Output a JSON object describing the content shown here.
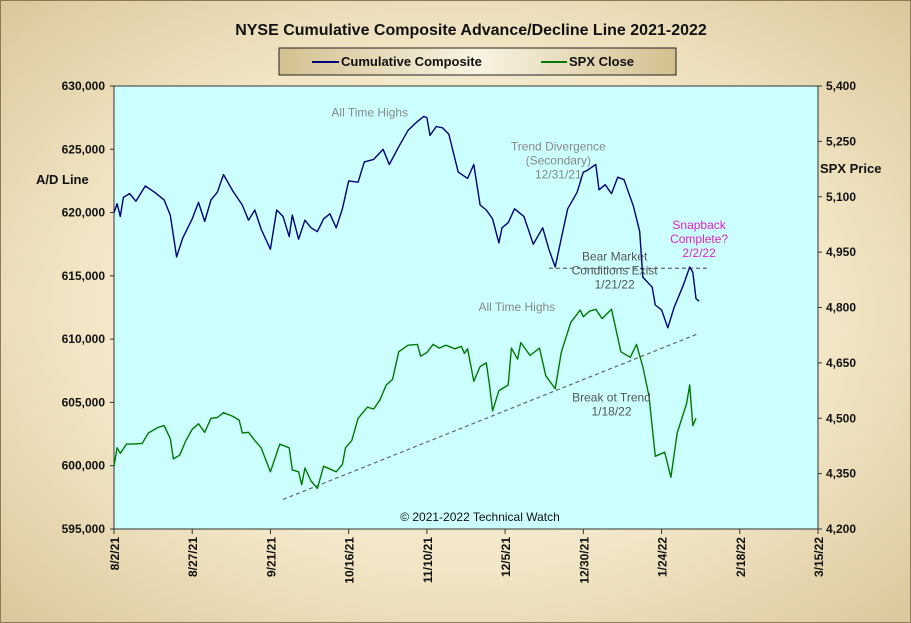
{
  "chart_data": {
    "type": "line",
    "title": "NYSE Cumulative  Composite Advance/Decline Line 2021-2022",
    "ylabel_left": "A/D Line",
    "ylabel_right": "SPX Price",
    "ylim_left": [
      595000,
      630000
    ],
    "ylim_right": [
      4200,
      5400
    ],
    "xlim": [
      "2021-08-02",
      "2022-03-15"
    ],
    "grid": false,
    "legend_position": "top-center",
    "x_tick_labels": [
      "8/2/21",
      "8/27/21",
      "9/21/21",
      "10/16/21",
      "11/10/21",
      "12/5/21",
      "12/30/21",
      "1/24/22",
      "2/18/22",
      "3/15/22"
    ],
    "y_tick_labels_left": [
      "630,000",
      "625,000",
      "620,000",
      "615,000",
      "610,000",
      "605,000",
      "600,000",
      "595,000"
    ],
    "y_tick_labels_right": [
      "5,400",
      "5,250",
      "5,100",
      "4,950",
      "4,800",
      "4,650",
      "4,500",
      "4,350",
      "4,200"
    ],
    "series": [
      {
        "name": "Cumulative Composite",
        "axis": "left",
        "color": "#00007a",
        "points": [
          [
            "2021-08-02",
            620000
          ],
          [
            "2021-08-03",
            620700
          ],
          [
            "2021-08-04",
            619700
          ],
          [
            "2021-08-05",
            621200
          ],
          [
            "2021-08-07",
            621500
          ],
          [
            "2021-08-09",
            620900
          ],
          [
            "2021-08-12",
            622100
          ],
          [
            "2021-08-15",
            621600
          ],
          [
            "2021-08-18",
            621000
          ],
          [
            "2021-08-20",
            619800
          ],
          [
            "2021-08-22",
            616500
          ],
          [
            "2021-08-24",
            618000
          ],
          [
            "2021-08-27",
            619500
          ],
          [
            "2021-08-29",
            620800
          ],
          [
            "2021-08-31",
            619300
          ],
          [
            "2021-09-02",
            621000
          ],
          [
            "2021-09-04",
            621600
          ],
          [
            "2021-09-06",
            623000
          ],
          [
            "2021-09-09",
            621700
          ],
          [
            "2021-09-12",
            620600
          ],
          [
            "2021-09-14",
            619400
          ],
          [
            "2021-09-16",
            620200
          ],
          [
            "2021-09-18",
            618700
          ],
          [
            "2021-09-21",
            617100
          ],
          [
            "2021-09-23",
            620200
          ],
          [
            "2021-09-25",
            619700
          ],
          [
            "2021-09-27",
            618100
          ],
          [
            "2021-09-28",
            619800
          ],
          [
            "2021-09-30",
            617900
          ],
          [
            "2021-10-02",
            619400
          ],
          [
            "2021-10-04",
            618800
          ],
          [
            "2021-10-06",
            618500
          ],
          [
            "2021-10-08",
            619500
          ],
          [
            "2021-10-10",
            619900
          ],
          [
            "2021-10-12",
            618800
          ],
          [
            "2021-10-14",
            620300
          ],
          [
            "2021-10-16",
            622500
          ],
          [
            "2021-10-19",
            622400
          ],
          [
            "2021-10-21",
            624000
          ],
          [
            "2021-10-24",
            624200
          ],
          [
            "2021-10-27",
            625000
          ],
          [
            "2021-10-29",
            623800
          ],
          [
            "2021-11-01",
            625200
          ],
          [
            "2021-11-04",
            626500
          ],
          [
            "2021-11-07",
            627200
          ],
          [
            "2021-11-09",
            627600
          ],
          [
            "2021-11-10",
            627500
          ],
          [
            "2021-11-11",
            626100
          ],
          [
            "2021-11-13",
            626800
          ],
          [
            "2021-11-15",
            626700
          ],
          [
            "2021-11-17",
            626200
          ],
          [
            "2021-11-20",
            623200
          ],
          [
            "2021-11-23",
            622700
          ],
          [
            "2021-11-25",
            623800
          ],
          [
            "2021-11-27",
            620600
          ],
          [
            "2021-11-29",
            620200
          ],
          [
            "2021-12-01",
            619500
          ],
          [
            "2021-12-03",
            617600
          ],
          [
            "2021-12-04",
            618800
          ],
          [
            "2021-12-06",
            619200
          ],
          [
            "2021-12-08",
            620300
          ],
          [
            "2021-12-11",
            619700
          ],
          [
            "2021-12-14",
            617500
          ],
          [
            "2021-12-17",
            618800
          ],
          [
            "2021-12-19",
            617100
          ],
          [
            "2021-12-21",
            615700
          ],
          [
            "2021-12-23",
            618000
          ],
          [
            "2021-12-25",
            620300
          ],
          [
            "2021-12-28",
            621600
          ],
          [
            "2021-12-30",
            623200
          ],
          [
            "2021-12-31",
            623300
          ],
          [
            "2022-01-03",
            623800
          ],
          [
            "2022-01-04",
            621800
          ],
          [
            "2022-01-06",
            622200
          ],
          [
            "2022-01-08",
            621500
          ],
          [
            "2022-01-10",
            622800
          ],
          [
            "2022-01-12",
            622600
          ],
          [
            "2022-01-15",
            620500
          ],
          [
            "2022-01-17",
            618500
          ],
          [
            "2022-01-18",
            614900
          ],
          [
            "2022-01-21",
            614100
          ],
          [
            "2022-01-22",
            612700
          ],
          [
            "2022-01-24",
            612300
          ],
          [
            "2022-01-26",
            610900
          ],
          [
            "2022-01-28",
            612500
          ],
          [
            "2022-01-31",
            614300
          ],
          [
            "2022-02-02",
            615700
          ],
          [
            "2022-02-03",
            615300
          ],
          [
            "2022-02-04",
            613200
          ],
          [
            "2022-02-05",
            613000
          ]
        ]
      },
      {
        "name": "SPX Close",
        "axis": "right",
        "color": "#007a00",
        "points": [
          [
            "2021-08-02",
            4370
          ],
          [
            "2021-08-03",
            4420
          ],
          [
            "2021-08-04",
            4405
          ],
          [
            "2021-08-06",
            4430
          ],
          [
            "2021-08-08",
            4430
          ],
          [
            "2021-08-11",
            4432
          ],
          [
            "2021-08-13",
            4460
          ],
          [
            "2021-08-16",
            4475
          ],
          [
            "2021-08-18",
            4480
          ],
          [
            "2021-08-20",
            4445
          ],
          [
            "2021-08-21",
            4390
          ],
          [
            "2021-08-23",
            4400
          ],
          [
            "2021-08-25",
            4440
          ],
          [
            "2021-08-27",
            4470
          ],
          [
            "2021-08-29",
            4485
          ],
          [
            "2021-08-31",
            4462
          ],
          [
            "2021-09-02",
            4500
          ],
          [
            "2021-09-04",
            4502
          ],
          [
            "2021-09-06",
            4515
          ],
          [
            "2021-09-09",
            4505
          ],
          [
            "2021-09-11",
            4495
          ],
          [
            "2021-09-12",
            4460
          ],
          [
            "2021-09-14",
            4462
          ],
          [
            "2021-09-16",
            4440
          ],
          [
            "2021-09-18",
            4420
          ],
          [
            "2021-09-21",
            4355
          ],
          [
            "2021-09-24",
            4430
          ],
          [
            "2021-09-27",
            4420
          ],
          [
            "2021-09-28",
            4360
          ],
          [
            "2021-09-30",
            4355
          ],
          [
            "2021-10-01",
            4320
          ],
          [
            "2021-10-02",
            4365
          ],
          [
            "2021-10-04",
            4330
          ],
          [
            "2021-10-06",
            4310
          ],
          [
            "2021-10-08",
            4370
          ],
          [
            "2021-10-12",
            4355
          ],
          [
            "2021-10-14",
            4375
          ],
          [
            "2021-10-15",
            4420
          ],
          [
            "2021-10-17",
            4440
          ],
          [
            "2021-10-19",
            4500
          ],
          [
            "2021-10-22",
            4530
          ],
          [
            "2021-10-24",
            4525
          ],
          [
            "2021-10-26",
            4550
          ],
          [
            "2021-10-28",
            4590
          ],
          [
            "2021-10-30",
            4605
          ],
          [
            "2021-11-01",
            4680
          ],
          [
            "2021-11-04",
            4698
          ],
          [
            "2021-11-07",
            4700
          ],
          [
            "2021-11-08",
            4668
          ],
          [
            "2021-11-10",
            4678
          ],
          [
            "2021-11-12",
            4700
          ],
          [
            "2021-11-14",
            4690
          ],
          [
            "2021-11-16",
            4698
          ],
          [
            "2021-11-19",
            4688
          ],
          [
            "2021-11-21",
            4695
          ],
          [
            "2021-11-22",
            4676
          ],
          [
            "2021-11-23",
            4688
          ],
          [
            "2021-11-25",
            4600
          ],
          [
            "2021-11-27",
            4640
          ],
          [
            "2021-11-29",
            4650
          ],
          [
            "2021-11-30",
            4590
          ],
          [
            "2021-12-01",
            4520
          ],
          [
            "2021-12-03",
            4575
          ],
          [
            "2021-12-06",
            4590
          ],
          [
            "2021-12-07",
            4690
          ],
          [
            "2021-12-09",
            4660
          ],
          [
            "2021-12-10",
            4705
          ],
          [
            "2021-12-13",
            4670
          ],
          [
            "2021-12-16",
            4690
          ],
          [
            "2021-12-18",
            4615
          ],
          [
            "2021-12-21",
            4580
          ],
          [
            "2021-12-23",
            4680
          ],
          [
            "2021-12-26",
            4760
          ],
          [
            "2021-12-29",
            4793
          ],
          [
            "2021-12-30",
            4775
          ],
          [
            "2022-01-01",
            4790
          ],
          [
            "2022-01-03",
            4795
          ],
          [
            "2022-01-05",
            4770
          ],
          [
            "2022-01-08",
            4795
          ],
          [
            "2022-01-11",
            4680
          ],
          [
            "2022-01-14",
            4665
          ],
          [
            "2022-01-16",
            4700
          ],
          [
            "2022-01-18",
            4640
          ],
          [
            "2022-01-20",
            4560
          ],
          [
            "2022-01-22",
            4397
          ],
          [
            "2022-01-25",
            4408
          ],
          [
            "2022-01-27",
            4340
          ],
          [
            "2022-01-29",
            4460
          ],
          [
            "2022-02-01",
            4540
          ],
          [
            "2022-02-02",
            4590
          ],
          [
            "2022-02-03",
            4480
          ],
          [
            "2022-02-04",
            4500
          ]
        ]
      }
    ],
    "trendlines": [
      {
        "axis": "right",
        "from": [
          "2021-09-25",
          4280
        ],
        "to": [
          "2022-02-05",
          4730
        ]
      },
      {
        "axis": "left",
        "from": [
          "2021-12-19",
          615600
        ],
        "to": [
          "2022-02-08",
          615600
        ]
      }
    ],
    "annotations": [
      {
        "text": [
          "All Time Highs"
        ],
        "color": "#888888",
        "x": "2021-11-04",
        "axis": "left",
        "y": 627600,
        "anchor": "end"
      },
      {
        "text": [
          "Trend  Divergence",
          "(Secondary)",
          "12/31/21"
        ],
        "color": "#888888",
        "x": "2021-12-22",
        "axis": "left",
        "y": 624900,
        "anchor": "middle"
      },
      {
        "text": [
          "Snapback",
          "Complete?",
          "2/2/22"
        ],
        "color": "#dd22cc",
        "x": "2022-02-05",
        "axis": "left",
        "y": 618700,
        "anchor": "middle"
      },
      {
        "text": [
          "Bear Market",
          "Conditions  Exist",
          "1/21/22"
        ],
        "color": "#555555",
        "x": "2022-01-09",
        "axis": "left",
        "y": 616200,
        "anchor": "middle"
      },
      {
        "text": [
          "All Time  Highs"
        ],
        "color": "#888888",
        "x": "2021-12-21",
        "axis": "right",
        "y": 4790,
        "anchor": "end"
      },
      {
        "text": [
          "Break ot Trend",
          "1/18/22"
        ],
        "color": "#555555",
        "x": "2022-01-08",
        "axis": "right",
        "y": 4545,
        "anchor": "middle"
      }
    ],
    "copyright": "© 2021-2022  Technical Watch"
  }
}
